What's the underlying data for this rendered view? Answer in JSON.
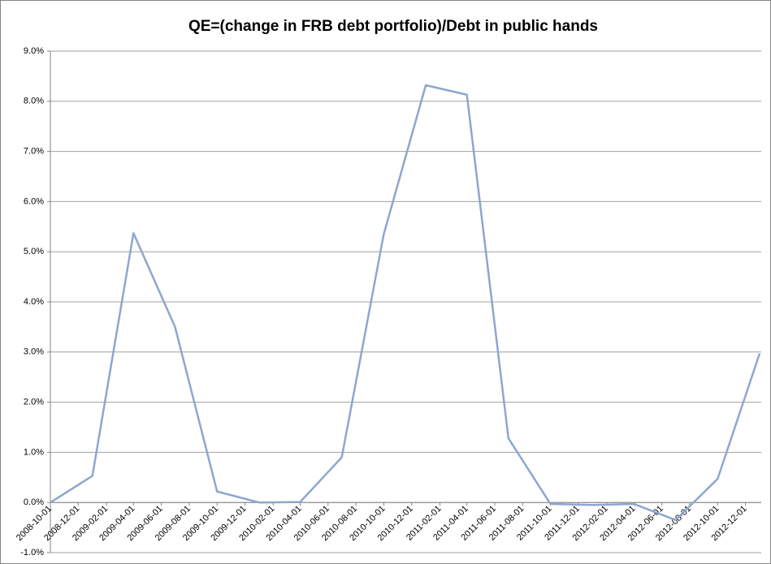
{
  "chart_data": {
    "type": "line",
    "title": "QE=(change in FRB debt portfolio)/Debt in public hands",
    "x": [
      "2008-10-01",
      "2009-01-01",
      "2009-04-01",
      "2009-07-01",
      "2009-10-01",
      "2010-01-01",
      "2010-04-01",
      "2010-07-01",
      "2010-10-01",
      "2011-01-01",
      "2011-04-01",
      "2011-07-01",
      "2011-10-01",
      "2012-01-01",
      "2012-04-01",
      "2012-07-01",
      "2012-10-01",
      "2013-01-01"
    ],
    "series": [
      {
        "name": "QE",
        "color": "#8ea6cf",
        "values": [
          0,
          0.53,
          5.37,
          3.5,
          0.22,
          0.0,
          0.01,
          0.9,
          5.35,
          8.32,
          8.13,
          1.28,
          -0.03,
          -0.05,
          -0.03,
          -0.35,
          0.47,
          2.97
        ]
      }
    ],
    "xlim": [
      "2008-10-01",
      "2013-01-01"
    ],
    "xticks": [
      "2008-10-01",
      "2008-12-01",
      "2009-02-01",
      "2009-04-01",
      "2009-06-01",
      "2009-08-01",
      "2009-10-01",
      "2009-12-01",
      "2010-02-01",
      "2010-04-01",
      "2010-06-01",
      "2010-08-01",
      "2010-10-01",
      "2010-12-01",
      "2011-02-01",
      "2011-04-01",
      "2011-06-01",
      "2011-08-01",
      "2011-10-01",
      "2011-12-01",
      "2012-02-01",
      "2012-04-01",
      "2012-06-01",
      "2012-08-01",
      "2012-10-01",
      "2012-12-01"
    ],
    "ylim": [
      -1,
      9
    ],
    "yticks": [
      {
        "value": -1,
        "label": "-1.0%"
      },
      {
        "value": 0,
        "label": "0.0%"
      },
      {
        "value": 1,
        "label": "1.0%"
      },
      {
        "value": 2,
        "label": "2.0%"
      },
      {
        "value": 3,
        "label": "3.0%"
      },
      {
        "value": 4,
        "label": "4.0%"
      },
      {
        "value": 5,
        "label": "5.0%"
      },
      {
        "value": 6,
        "label": "6.0%"
      },
      {
        "value": 7,
        "label": "7.0%"
      },
      {
        "value": 8,
        "label": "8.0%"
      },
      {
        "value": 9,
        "label": "9.0%"
      }
    ],
    "grid": true
  }
}
